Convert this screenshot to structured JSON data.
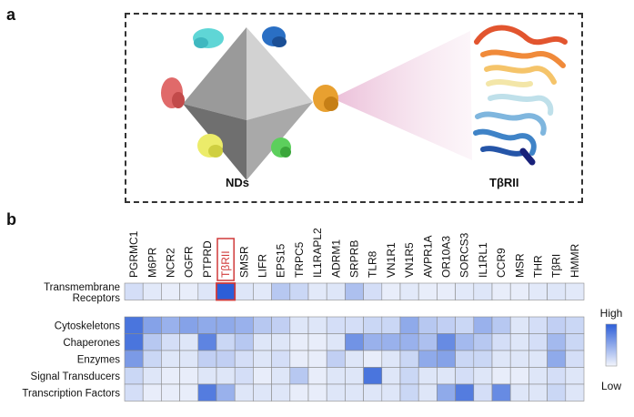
{
  "panels": {
    "a": "a",
    "b": "b"
  },
  "panel_a": {
    "nds_label": "NDs",
    "protein_label": "TβRII"
  },
  "heatmap": {
    "columns": [
      "PGRMC1",
      "M6PR",
      "NCR2",
      "OGFR",
      "PTPRD",
      "TβRII",
      "SMSR",
      "LIFR",
      "EPS15",
      "TRPC5",
      "IL1RAPL2",
      "ADRM1",
      "SRPRB",
      "TLR8",
      "VN1R1",
      "VN1R5",
      "AVPR1A",
      "OR10A3",
      "SORCS3",
      "IL1RL1",
      "CCR9",
      "MSR",
      "THR",
      "TβRI",
      "HMMR"
    ],
    "highlighted_column": "TβRII",
    "highlight_color": "#d03a3a",
    "color_low": "#f2f5fc",
    "color_high": "#2c5ed8",
    "top_row": {
      "label_line1": "Transmembrane",
      "label_line2": "Receptors",
      "values": [
        0.15,
        0.08,
        0.05,
        0.05,
        0.1,
        1.0,
        0.1,
        0.08,
        0.3,
        0.2,
        0.08,
        0.1,
        0.35,
        0.15,
        0.05,
        0.08,
        0.05,
        0.05,
        0.08,
        0.1,
        0.05,
        0.05,
        0.08,
        0.1,
        0.08
      ]
    },
    "rows": [
      {
        "label": "Cytoskeletons",
        "values": [
          0.85,
          0.55,
          0.45,
          0.55,
          0.5,
          0.5,
          0.45,
          0.3,
          0.25,
          0.1,
          0.1,
          0.15,
          0.15,
          0.2,
          0.2,
          0.5,
          0.3,
          0.25,
          0.2,
          0.45,
          0.3,
          0.1,
          0.15,
          0.25,
          0.2
        ]
      },
      {
        "label": "Chaperones",
        "values": [
          0.85,
          0.3,
          0.15,
          0.1,
          0.75,
          0.2,
          0.3,
          0.1,
          0.1,
          0.05,
          0.05,
          0.1,
          0.65,
          0.45,
          0.45,
          0.45,
          0.35,
          0.7,
          0.4,
          0.3,
          0.15,
          0.1,
          0.15,
          0.4,
          0.2
        ]
      },
      {
        "label": "Enzymes",
        "values": [
          0.6,
          0.2,
          0.1,
          0.1,
          0.25,
          0.25,
          0.15,
          0.1,
          0.15,
          0.05,
          0.05,
          0.25,
          0.1,
          0.05,
          0.1,
          0.2,
          0.5,
          0.55,
          0.2,
          0.2,
          0.1,
          0.1,
          0.1,
          0.5,
          0.15
        ]
      },
      {
        "label": "Signal Transducers",
        "values": [
          0.2,
          0.1,
          0.05,
          0.05,
          0.1,
          0.1,
          0.15,
          0.05,
          0.1,
          0.3,
          0.05,
          0.1,
          0.1,
          0.85,
          0.1,
          0.2,
          0.1,
          0.1,
          0.15,
          0.1,
          0.05,
          0.05,
          0.1,
          0.15,
          0.1
        ]
      },
      {
        "label": "Transcription Factors",
        "values": [
          0.15,
          0.05,
          0.05,
          0.05,
          0.8,
          0.45,
          0.1,
          0.1,
          0.1,
          0.05,
          0.05,
          0.1,
          0.1,
          0.1,
          0.1,
          0.2,
          0.1,
          0.5,
          0.8,
          0.15,
          0.7,
          0.1,
          0.1,
          0.2,
          0.1
        ]
      }
    ],
    "legend": {
      "high": "High",
      "low": "Low"
    }
  }
}
